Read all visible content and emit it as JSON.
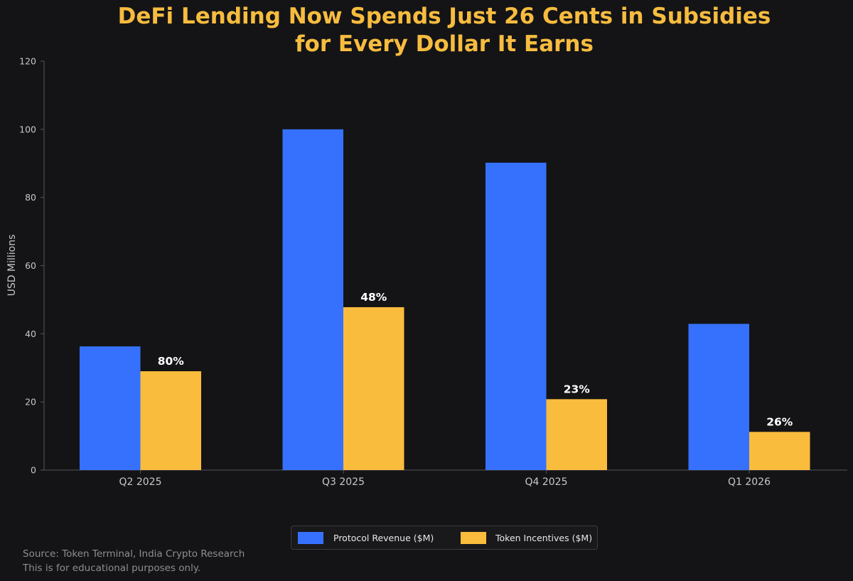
{
  "chart_data": {
    "type": "bar",
    "title_lines": [
      "DeFi Lending Now Spends Just 26 Cents in Subsidies",
      "for Every Dollar It Earns"
    ],
    "categories": [
      "Q2 2025",
      "Q3 2025",
      "Q4 2025",
      "Q1 2026"
    ],
    "series": [
      {
        "name": "Protocol Revenue ($M)",
        "color": "#3671fd",
        "values": [
          36.3,
          100.0,
          90.2,
          42.9
        ]
      },
      {
        "name": "Token Incentives ($M)",
        "color": "#fabc3d",
        "values": [
          29.0,
          47.8,
          20.8,
          11.2
        ],
        "data_labels": [
          "80%",
          "48%",
          "23%",
          "26%"
        ]
      }
    ],
    "ylabel": "USD Millions",
    "xlabel": "",
    "ylim": [
      0,
      120
    ],
    "yticks": [
      0,
      20,
      40,
      60,
      80,
      100,
      120
    ],
    "grid": false,
    "legend_position": "bottom-center"
  },
  "footnotes": {
    "source": "Source: Token Terminal, India Crypto Research",
    "disclaimer": "This is for educational purposes only."
  },
  "colors": {
    "background": "#141416",
    "title": "#f7bc3f",
    "axis": "#55555b",
    "tick_text": "#c8c8cc",
    "data_label_text": "#ffffff"
  }
}
